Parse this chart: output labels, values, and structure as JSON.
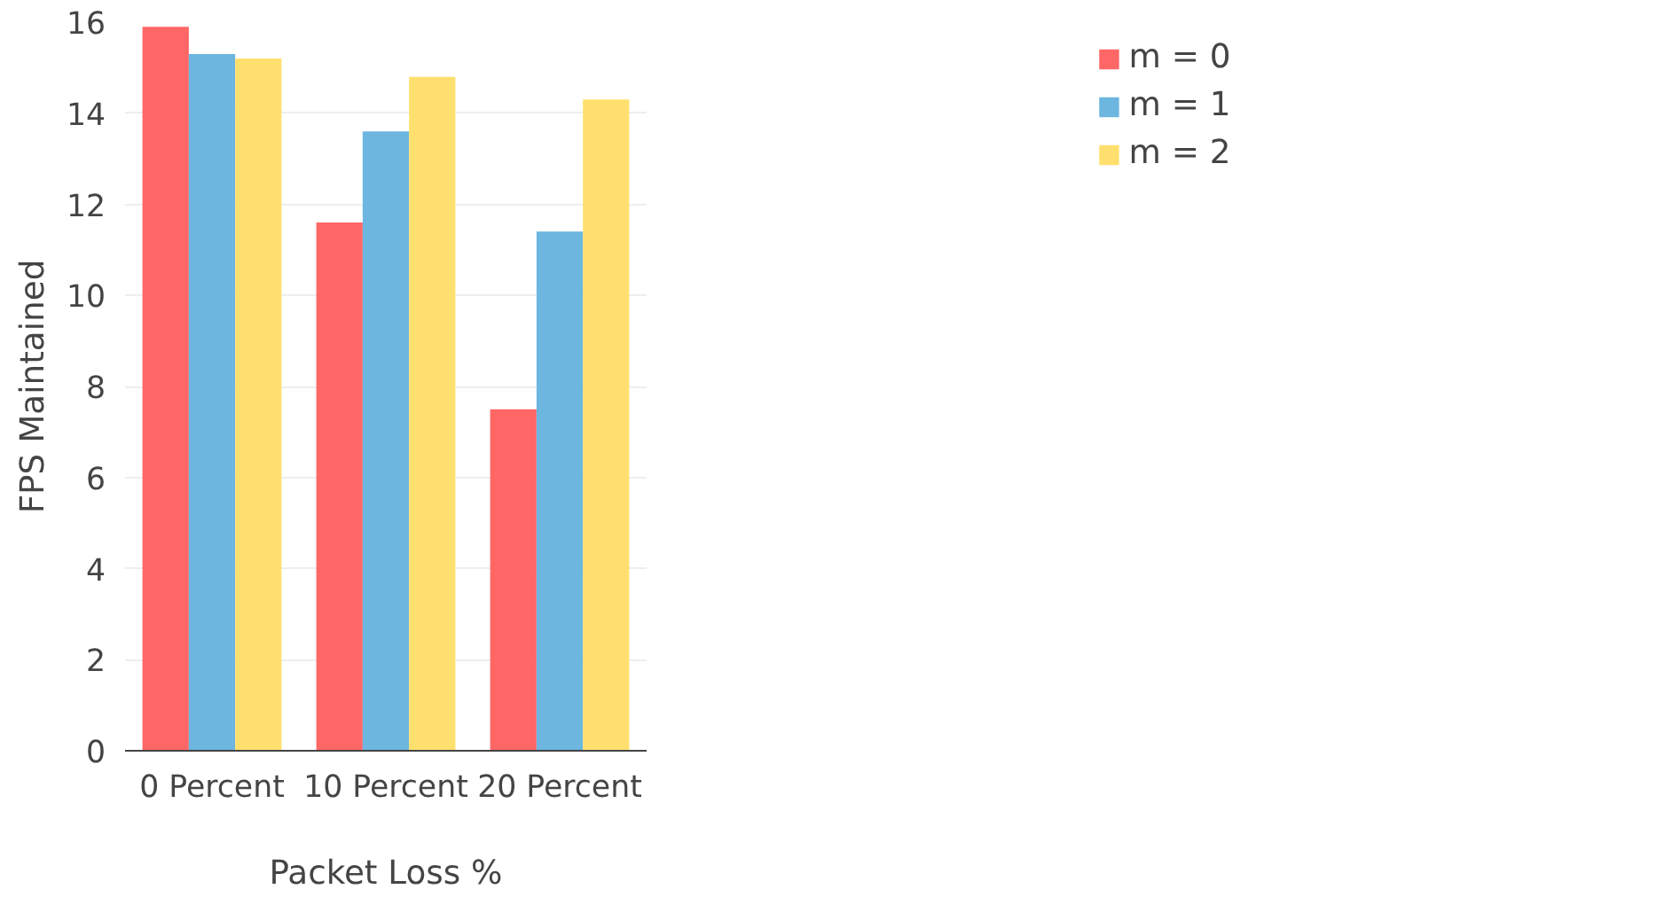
{
  "chart_data": {
    "type": "bar",
    "xlabel": "Packet Loss %",
    "ylabel": "FPS Maintained",
    "categories": [
      "0 Percent",
      "10 Percent",
      "20 Percent"
    ],
    "series": [
      {
        "name": "m = 0",
        "color": "#ff6666",
        "values": [
          15.9,
          11.6,
          7.5
        ]
      },
      {
        "name": "m = 1",
        "color": "#6cb6e0",
        "values": [
          15.3,
          13.6,
          11.4
        ]
      },
      {
        "name": "m = 2",
        "color": "#ffe06e",
        "values": [
          15.2,
          14.8,
          14.3
        ]
      }
    ],
    "ylim": [
      0,
      16
    ],
    "yticks": [
      0,
      2,
      4,
      6,
      8,
      10,
      12,
      14,
      16
    ],
    "grid": "y",
    "legend": "top right"
  }
}
